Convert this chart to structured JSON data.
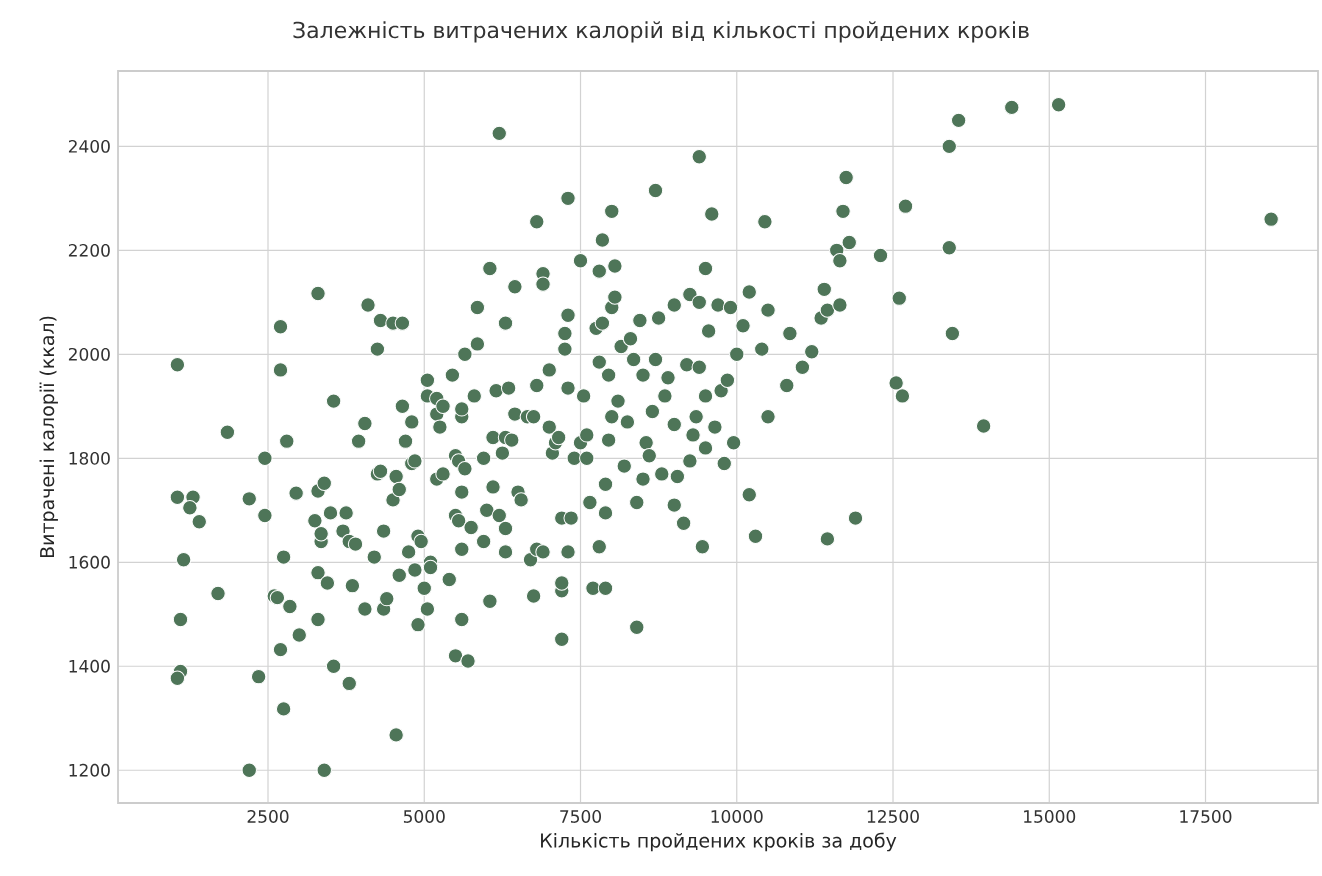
{
  "chart_data": {
    "type": "scatter",
    "title": "Залежність витрачених калорій від кількості пройдених кроків",
    "xlabel": "Кількість пройдених кроків за добу",
    "ylabel": "Витрачені калорії (ккал)",
    "x": [
      1050,
      1050,
      1300,
      1250,
      1400,
      1150,
      1100,
      1100,
      1050,
      1700,
      1850,
      2200,
      2200,
      2350,
      2450,
      2450,
      2600,
      2650,
      2700,
      2700,
      2700,
      2750,
      2750,
      2800,
      2850,
      2950,
      3000,
      3250,
      3300,
      3300,
      3300,
      3300,
      3350,
      3350,
      3400,
      3400,
      3450,
      3500,
      3550,
      3550,
      3700,
      3750,
      3800,
      3800,
      3850,
      3900,
      3950,
      4050,
      4050,
      4100,
      4200,
      4250,
      4250,
      4300,
      4300,
      4350,
      4350,
      4400,
      4500,
      4500,
      4550,
      4550,
      4600,
      4600,
      4650,
      4650,
      4700,
      4750,
      4800,
      4800,
      4850,
      4850,
      4900,
      4900,
      4950,
      5000,
      5050,
      5050,
      5050,
      5100,
      5100,
      5200,
      5200,
      5200,
      5250,
      5300,
      5300,
      5400,
      5450,
      5500,
      5500,
      5500,
      5550,
      5550,
      5600,
      5600,
      5600,
      5600,
      5600,
      5650,
      5650,
      5700,
      5750,
      5800,
      5850,
      5850,
      5950,
      5950,
      6000,
      6050,
      6050,
      6100,
      6100,
      6150,
      6200,
      6200,
      6250,
      6300,
      6300,
      6300,
      6300,
      6350,
      6400,
      6450,
      6450,
      6500,
      6550,
      6650,
      6700,
      6750,
      6750,
      6800,
      6800,
      6800,
      6900,
      6900,
      6900,
      7000,
      7000,
      7050,
      7100,
      7150,
      7200,
      7200,
      7200,
      7200,
      7250,
      7250,
      7300,
      7300,
      7300,
      7300,
      7350,
      7400,
      7500,
      7500,
      7550,
      7600,
      7600,
      7650,
      7700,
      7750,
      7800,
      7800,
      7800,
      7850,
      7850,
      7900,
      7900,
      7900,
      7950,
      7950,
      8000,
      8000,
      8000,
      8050,
      8050,
      8100,
      8150,
      8200,
      8250,
      8300,
      8350,
      8400,
      8400,
      8450,
      8500,
      8500,
      8550,
      8600,
      8650,
      8700,
      8700,
      8750,
      8800,
      8850,
      8900,
      9000,
      9000,
      9000,
      9050,
      9150,
      9200,
      9250,
      9250,
      9300,
      9350,
      9400,
      9400,
      9400,
      9450,
      9500,
      9500,
      9500,
      9550,
      9600,
      9650,
      9700,
      9750,
      9800,
      9850,
      9900,
      9950,
      10000,
      10100,
      10200,
      10200,
      10300,
      10400,
      10450,
      10500,
      10500,
      10800,
      10850,
      11050,
      11200,
      11350,
      11400,
      11450,
      11450,
      11600,
      11650,
      11650,
      11700,
      11750,
      11800,
      11900,
      12300,
      12550,
      12600,
      12650,
      12700,
      13400,
      13400,
      13450,
      13550,
      13950,
      14400,
      15150,
      18550
    ],
    "values": [
      1980,
      1725,
      1725,
      1705,
      1678,
      1605,
      1490,
      1390,
      1377,
      1540,
      1850,
      1722,
      1200,
      1380,
      1690,
      1800,
      1535,
      1532,
      2053,
      1970,
      1432,
      1318,
      1610,
      1833,
      1515,
      1733,
      1460,
      1680,
      1737,
      1490,
      1580,
      2117,
      1640,
      1655,
      1752,
      1200,
      1560,
      1695,
      1910,
      1400,
      1660,
      1695,
      1640,
      1367,
      1555,
      1635,
      1833,
      1867,
      1510,
      2095,
      1610,
      2010,
      1770,
      1775,
      2065,
      1660,
      1510,
      1530,
      2060,
      1720,
      1268,
      1765,
      1575,
      1740,
      2060,
      1900,
      1833,
      1620,
      1870,
      1790,
      1795,
      1585,
      1650,
      1480,
      1640,
      1550,
      1950,
      1920,
      1510,
      1600,
      1590,
      1760,
      1885,
      1915,
      1860,
      1900,
      1770,
      1567,
      1960,
      1805,
      1690,
      1420,
      1680,
      1795,
      1880,
      1895,
      1625,
      1735,
      1490,
      2000,
      1780,
      1410,
      1667,
      1920,
      2090,
      2020,
      1800,
      1640,
      1700,
      2165,
      1525,
      1745,
      1840,
      1930,
      2425,
      1690,
      1810,
      2060,
      1620,
      1840,
      1665,
      1935,
      1835,
      2130,
      1885,
      1735,
      1720,
      1880,
      1605,
      1535,
      1880,
      1940,
      2255,
      1625,
      2155,
      2135,
      1620,
      1970,
      1860,
      1810,
      1830,
      1840,
      1685,
      1545,
      1560,
      1452,
      2010,
      2040,
      2300,
      2075,
      1935,
      1620,
      1685,
      1800,
      2180,
      1830,
      1920,
      1845,
      1800,
      1715,
      1550,
      2050,
      1985,
      1630,
      2160,
      2220,
      2060,
      1550,
      1695,
      1750,
      1835,
      1960,
      2275,
      2090,
      1880,
      2170,
      2110,
      1910,
      2015,
      1785,
      1870,
      2030,
      1990,
      1475,
      1715,
      2065,
      1960,
      1760,
      1830,
      1805,
      1890,
      2315,
      1990,
      2070,
      1770,
      1920,
      1955,
      2095,
      1865,
      1710,
      1765,
      1675,
      1980,
      2115,
      1795,
      1845,
      1880,
      2380,
      2100,
      1975,
      1630,
      2165,
      1920,
      1820,
      2045,
      2270,
      1860,
      2095,
      1930,
      1790,
      1950,
      2090,
      1830,
      2000,
      2055,
      2120,
      1730,
      1650,
      2010,
      2255,
      2085,
      1880,
      1940,
      2040,
      1975,
      2005,
      2070,
      2125,
      1645,
      2085,
      2200,
      2180,
      2095,
      2275,
      2340,
      2215,
      1685,
      2190,
      1945,
      2108,
      1920,
      2285,
      2400,
      2205,
      2040,
      2450,
      1862,
      2475,
      2480,
      2260
    ],
    "color": "#4e7558",
    "marker": "circle",
    "grid": true,
    "xlim": [
      100,
      19300
    ],
    "ylim": [
      1137,
      2545
    ],
    "xticks": [
      2500,
      5000,
      7500,
      10000,
      12500,
      15000,
      17500
    ],
    "yticks": [
      1200,
      1400,
      1600,
      1800,
      2000,
      2200,
      2400
    ]
  }
}
